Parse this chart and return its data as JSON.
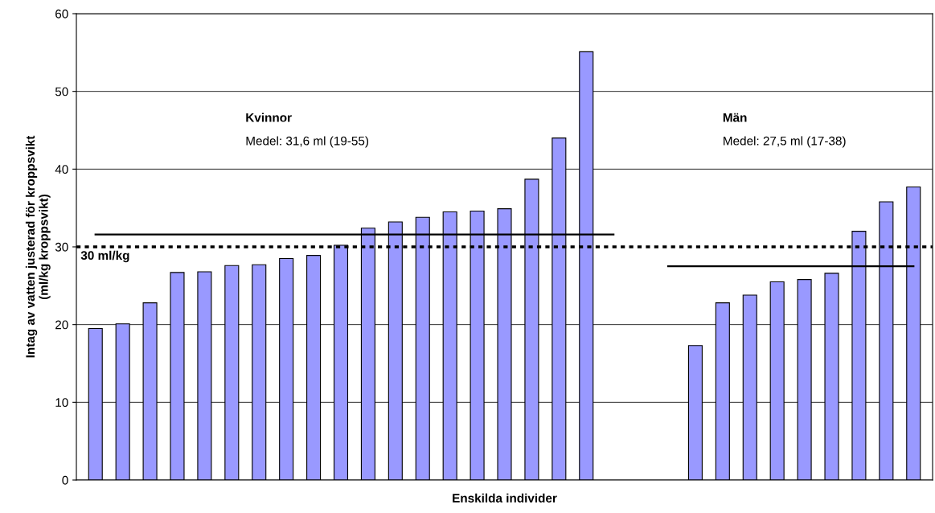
{
  "chart_data": {
    "type": "bar",
    "xlabel": "Enskilda individer",
    "ylabel": "Intag av vatten justerad för kroppsvikt\n(ml/kg kroppsvikt)",
    "categories": [
      null,
      null,
      null,
      null,
      null,
      null,
      null,
      null,
      null,
      null,
      null,
      null,
      null,
      null,
      null,
      null,
      null,
      null,
      null,
      null,
      null,
      null,
      null,
      null,
      null,
      null,
      null,
      null,
      null,
      null,
      null
    ],
    "series": [
      {
        "color": "#9999ff",
        "values": [
          19.5,
          20.1,
          22.8,
          26.7,
          26.8,
          27.6,
          27.7,
          28.5,
          28.9,
          30.2,
          32.4,
          33.2,
          33.8,
          34.5,
          34.6,
          34.9,
          38.7,
          44.0,
          55.1,
          null,
          null,
          null,
          17.3,
          22.8,
          23.8,
          25.5,
          25.8,
          26.6,
          32.0,
          35.8,
          37.7
        ]
      },
      {
        "type": "line",
        "color": "#000000",
        "values": [
          31.6,
          31.6,
          31.6,
          31.6,
          31.6,
          31.6,
          31.6,
          31.6,
          31.6,
          31.6,
          31.6,
          31.6,
          31.6,
          31.6,
          31.6,
          31.6,
          31.6,
          31.6,
          31.6,
          31.6,
          null,
          null,
          null,
          null,
          null,
          null,
          null,
          null,
          null,
          null,
          null
        ]
      },
      {
        "type": "line",
        "color": "#000000",
        "values": [
          null,
          null,
          null,
          null,
          null,
          null,
          null,
          null,
          null,
          null,
          null,
          null,
          null,
          null,
          null,
          null,
          null,
          null,
          null,
          null,
          null,
          27.5,
          27.5,
          27.5,
          27.5,
          27.5,
          27.5,
          27.5,
          27.5,
          27.5,
          27.5
        ]
      }
    ],
    "ref_lines": [
      {
        "axis": "y",
        "value": 30,
        "label": "30 ml/kg",
        "color": "#000000",
        "line_style": "dotted"
      }
    ],
    "annotations": [
      "Kvinnor",
      "Medel: 31,6 ml (19-55)",
      "Män",
      "Medel: 27,5 ml (17-38)"
    ],
    "ylim": [
      0,
      60
    ],
    "yticks": [
      0,
      10,
      20,
      30,
      40,
      50,
      60
    ],
    "grid": "y",
    "tick_labels": "y",
    "legend": false
  }
}
